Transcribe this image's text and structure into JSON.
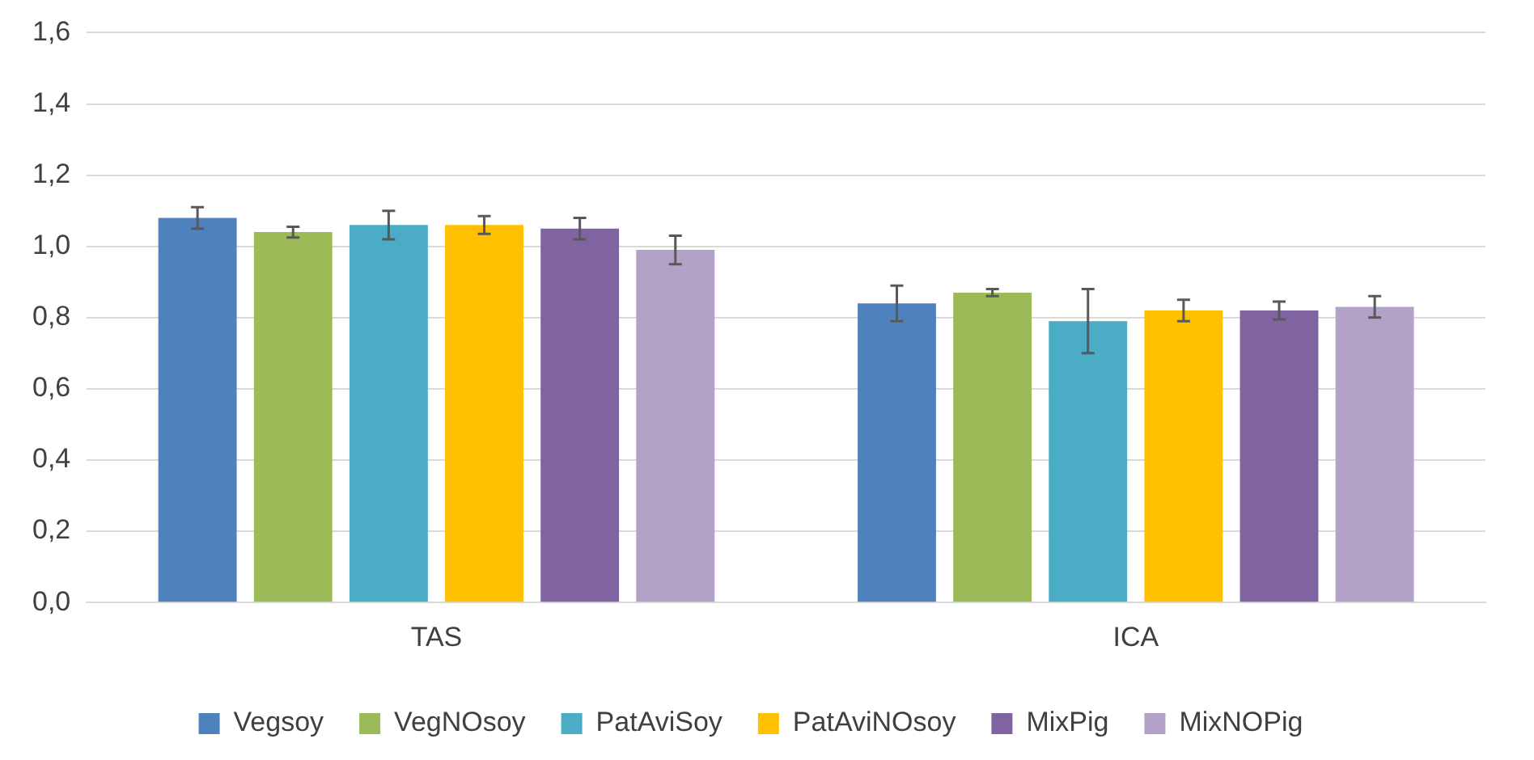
{
  "chart_data": {
    "type": "bar",
    "categories": [
      "TAS",
      "ICA"
    ],
    "series": [
      {
        "name": "Vegsoy",
        "color": "#4f81bd",
        "values": [
          1.08,
          0.84
        ],
        "errors": [
          0.03,
          0.05
        ]
      },
      {
        "name": "VegNOsoy",
        "color": "#9bbb59",
        "values": [
          1.04,
          0.87
        ],
        "errors": [
          0.015,
          0.01
        ]
      },
      {
        "name": "PatAviSoy",
        "color": "#4bacc6",
        "values": [
          1.06,
          0.79
        ],
        "errors": [
          0.04,
          0.09
        ]
      },
      {
        "name": "PatAviNOsoy",
        "color": "#ffc000",
        "values": [
          1.06,
          0.82
        ],
        "errors": [
          0.025,
          0.03
        ]
      },
      {
        "name": "MixPig",
        "color": "#8064a2",
        "values": [
          1.05,
          0.82
        ],
        "errors": [
          0.03,
          0.025
        ]
      },
      {
        "name": "MixNOPig",
        "color": "#b3a2c7",
        "values": [
          0.99,
          0.83
        ],
        "errors": [
          0.04,
          0.03
        ]
      }
    ],
    "ylim": [
      0,
      1.6
    ],
    "yticks": [
      {
        "value": 0,
        "label": "0,0"
      },
      {
        "value": 0.2,
        "label": "0,2"
      },
      {
        "value": 0.4,
        "label": "0,4"
      },
      {
        "value": 0.6,
        "label": "0,6"
      },
      {
        "value": 0.8,
        "label": "0,8"
      },
      {
        "value": 1,
        "label": "1,0"
      },
      {
        "value": 1.2,
        "label": "1,2"
      },
      {
        "value": 1.4,
        "label": "1,4"
      },
      {
        "value": 1.6,
        "label": "1,6"
      }
    ],
    "grid": "y",
    "legend": "bottom"
  }
}
